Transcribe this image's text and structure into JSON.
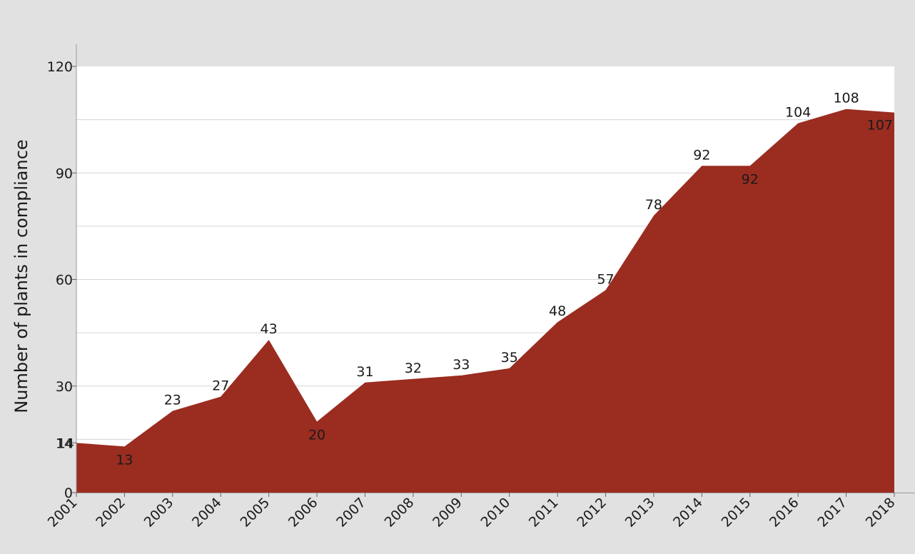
{
  "chart_data": {
    "type": "area",
    "ylabel": "Number of plants in compliance",
    "xlabel": "",
    "title": "",
    "x": [
      "2001",
      "2002",
      "2003",
      "2004",
      "2005",
      "2006",
      "2007",
      "2008",
      "2009",
      "2010",
      "2011",
      "2012",
      "2013",
      "2014",
      "2015",
      "2016",
      "2017",
      "2018"
    ],
    "values": [
      14,
      13,
      23,
      27,
      43,
      20,
      31,
      32,
      33,
      35,
      48,
      57,
      78,
      92,
      92,
      104,
      108,
      107
    ],
    "label_position": [
      "above",
      "below",
      "above",
      "above",
      "above",
      "below",
      "above",
      "above",
      "above",
      "above",
      "above",
      "above",
      "above",
      "above",
      "below",
      "above",
      "above",
      "below"
    ],
    "ylim": [
      0,
      120
    ],
    "yticks": [
      0,
      14,
      30,
      60,
      90,
      120
    ],
    "grid": true,
    "fill_color": "#9b2c20",
    "plot_background": "#ffffff",
    "page_background": "#e1e1e1"
  }
}
